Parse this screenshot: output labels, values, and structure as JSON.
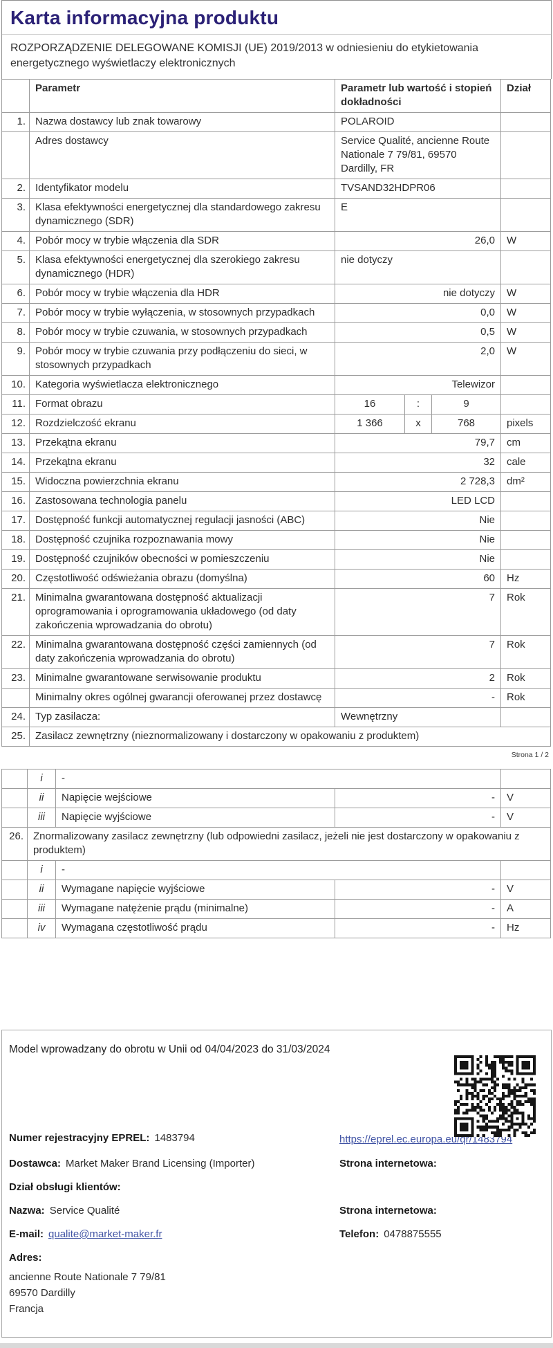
{
  "page": {
    "title": "Karta informacyjna produktu",
    "subtitle": "ROZPORZĄDZENIE DELEGOWANE KOMISJI (UE) 2019/2013 w odniesieniu do etykietowania energetycznego wyświetlaczy elektronicznych",
    "page_label": "Strona 1 / 2"
  },
  "colors": {
    "title": "#2b2176",
    "link": "#4053a4",
    "table_border": "#9c9c9c",
    "text": "#2e2e2e"
  },
  "table1": {
    "headers": {
      "param": "Parametr",
      "value": "Parametr lub wartość i stopień dokładności",
      "unit": "Dział"
    },
    "rows": [
      {
        "no": "1.",
        "param": "Nazwa dostawcy lub znak towarowy",
        "value": "POLAROID",
        "align": "left",
        "unit": ""
      },
      {
        "no": "",
        "param": "Adres dostawcy",
        "value": "Service Qualité, ancienne Route Nationale 7 79/81, 69570 Dardilly, FR",
        "align": "left",
        "unit": ""
      },
      {
        "no": "2.",
        "param": "Identyfikator modelu",
        "value": "TVSAND32HDPR06",
        "align": "left",
        "unit": ""
      },
      {
        "no": "3.",
        "param": "Klasa efektywności energetycznej dla standardowego zakresu dynamicznego (SDR)",
        "value": "E",
        "align": "left",
        "unit": ""
      },
      {
        "no": "4.",
        "param": "Pobór mocy w trybie włączenia dla SDR",
        "value": "26,0",
        "align": "right",
        "unit": "W"
      },
      {
        "no": "5.",
        "param": "Klasa efektywności energetycznej dla szerokiego zakresu dynamicznego (HDR)",
        "value": "nie dotyczy",
        "align": "left",
        "unit": ""
      },
      {
        "no": "6.",
        "param": "Pobór mocy w trybie włączenia dla HDR",
        "value": "nie dotyczy",
        "align": "right",
        "unit": "W"
      },
      {
        "no": "7.",
        "param": "Pobór mocy w trybie wyłączenia, w stosownych przypadkach",
        "value": "0,0",
        "align": "right",
        "unit": "W"
      },
      {
        "no": "8.",
        "param": "Pobór mocy w trybie czuwania, w stosownych przypadkach",
        "value": "0,5",
        "align": "right",
        "unit": "W"
      },
      {
        "no": "9.",
        "param": "Pobór mocy w trybie czuwania przy podłączeniu do sieci, w stosownych przypadkach",
        "value": "2,0",
        "align": "right",
        "unit": "W"
      },
      {
        "no": "10.",
        "param": "Kategoria wyświetlacza elektronicznego",
        "value": "Telewizor",
        "align": "right",
        "unit": ""
      },
      {
        "no": "11.",
        "param": "Format obrazu",
        "split": true,
        "v1": "16",
        "sep": ":",
        "v2": "9",
        "unit": ""
      },
      {
        "no": "12.",
        "param": "Rozdzielczość ekranu",
        "split": true,
        "v1": "1 366",
        "sep": "x",
        "v2": "768",
        "unit": "pixels"
      },
      {
        "no": "13.",
        "param": "Przekątna ekranu",
        "value": "79,7",
        "align": "right",
        "unit": "cm"
      },
      {
        "no": "14.",
        "param": "Przekątna ekranu",
        "value": "32",
        "align": "right",
        "unit": "cale"
      },
      {
        "no": "15.",
        "param": "Widoczna powierzchnia ekranu",
        "value": "2 728,3",
        "align": "right",
        "unit": "dm²"
      },
      {
        "no": "16.",
        "param": "Zastosowana technologia panelu",
        "value": "LED LCD",
        "align": "right",
        "unit": ""
      },
      {
        "no": "17.",
        "param": "Dostępność funkcji automatycznej regulacji jasności (ABC)",
        "value": "Nie",
        "align": "right",
        "unit": ""
      },
      {
        "no": "18.",
        "param": "Dostępność czujnika rozpoznawania mowy",
        "value": "Nie",
        "align": "right",
        "unit": ""
      },
      {
        "no": "19.",
        "param": "Dostępność czujników obecności w pomieszczeniu",
        "value": "Nie",
        "align": "right",
        "unit": ""
      },
      {
        "no": "20.",
        "param": "Częstotliwość odświeżania obrazu (domyślna)",
        "value": "60",
        "align": "right",
        "unit": "Hz"
      },
      {
        "no": "21.",
        "param": "Minimalna gwarantowana dostępność aktualizacji oprogramowania i oprogramowania układowego (od daty zakończenia wprowadzania do obrotu)",
        "value": "7",
        "align": "right",
        "unit": "Rok"
      },
      {
        "no": "22.",
        "param": "Minimalna gwarantowana dostępność części zamiennych (od daty zakończenia wprowadzania do obrotu)",
        "value": "7",
        "align": "right",
        "unit": "Rok"
      },
      {
        "no": "23.",
        "param": "Minimalne gwarantowane serwisowanie produktu",
        "value": "2",
        "align": "right",
        "unit": "Rok"
      },
      {
        "no": "",
        "param": "Minimalny okres ogólnej gwarancji oferowanej przez dostawcę",
        "value": "-",
        "align": "right",
        "unit": "Rok"
      },
      {
        "no": "24.",
        "param": "Typ zasilacza:",
        "value": "Wewnętrzny",
        "align": "left",
        "unit": ""
      },
      {
        "no": "25.",
        "param": "Zasilacz zewnętrzny (nieznormalizowany i dostarczony w opakowaniu z produktem)",
        "fullspan": true
      }
    ]
  },
  "table2": {
    "rows": [
      {
        "type": "sub",
        "roman": "i",
        "param": "-",
        "value": "",
        "unit": "",
        "merged": true
      },
      {
        "type": "sub",
        "roman": "ii",
        "param": "Napięcie wejściowe",
        "value": "-",
        "unit": "V"
      },
      {
        "type": "sub",
        "roman": "iii",
        "param": "Napięcie wyjściowe",
        "value": "-",
        "unit": "V"
      },
      {
        "type": "section",
        "no": "26.",
        "param": "Znormalizowany zasilacz zewnętrzny (lub odpowiedni zasilacz, jeżeli nie jest dostarczony w opakowaniu z produktem)"
      },
      {
        "type": "sub",
        "roman": "i",
        "param": "-",
        "value": "",
        "unit": "",
        "merged": true
      },
      {
        "type": "sub",
        "roman": "ii",
        "param": "Wymagane napięcie wyjściowe",
        "value": "-",
        "unit": "V"
      },
      {
        "type": "sub",
        "roman": "iii",
        "param": "Wymagane natężenie prądu (minimalne)",
        "value": "-",
        "unit": "A"
      },
      {
        "type": "sub",
        "roman": "iv",
        "param": "Wymagana częstotliwość prądu",
        "value": "-",
        "unit": "Hz"
      }
    ]
  },
  "footer": {
    "model_line": "Model wprowadzany do obrotu w Unii od 04/04/2023 do 31/03/2024",
    "eprel_label": "Numer rejestracyjny EPREL:",
    "eprel_value": "1483794",
    "eprel_link": "https://eprel.ec.europa.eu/qr/1483794",
    "dostawca_label": "Dostawca:",
    "dostawca_value": "Market Maker Brand Licensing (Importer)",
    "website_label": "Strona internetowa:",
    "customer_dept_label": "Dział obsługi klientów:",
    "name_label": "Nazwa:",
    "name_value": "Service Qualité",
    "email_label": "E-mail:",
    "email_value": "qualite@market-maker.fr",
    "phone_label": "Telefon:",
    "phone_value": "0478875555",
    "address_label": "Adres:",
    "address_lines": [
      "ancienne Route Nationale 7 79/81",
      "69570 Dardilly",
      "Francja"
    ]
  }
}
